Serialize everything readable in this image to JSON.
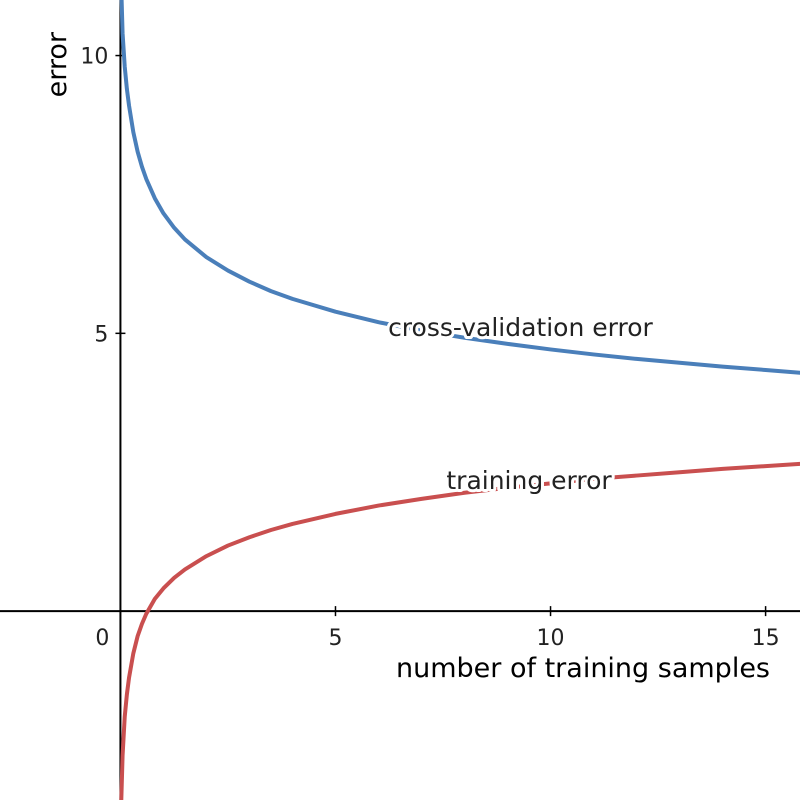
{
  "chart_data": {
    "type": "line",
    "xlabel": "number of training samples",
    "ylabel": "error",
    "xlim": [
      -2.8,
      15.8
    ],
    "ylim": [
      -3.4,
      11.0
    ],
    "x_ticks": [
      0,
      5,
      10,
      15
    ],
    "y_ticks": [
      5,
      10
    ],
    "origin_label": "0",
    "grid": false,
    "series": [
      {
        "name": "cross-validation error",
        "color": "#4a7fba",
        "x": [
          0.02,
          0.05,
          0.1,
          0.15,
          0.2,
          0.3,
          0.4,
          0.5,
          0.6,
          0.8,
          1.0,
          1.25,
          1.5,
          2,
          2.5,
          3,
          3.5,
          4,
          5,
          6,
          7,
          8,
          9,
          10,
          11,
          12,
          13,
          14,
          15,
          15.8
        ],
        "values": [
          11.2,
          10.4,
          9.8,
          9.4,
          9.1,
          8.62,
          8.27,
          8.0,
          7.78,
          7.43,
          7.16,
          6.9,
          6.69,
          6.37,
          6.13,
          5.93,
          5.76,
          5.62,
          5.39,
          5.2,
          5.05,
          4.92,
          4.81,
          4.71,
          4.62,
          4.54,
          4.47,
          4.4,
          4.34,
          4.29
        ]
      },
      {
        "name": "training error",
        "color": "#c94f4f",
        "x": [
          0.02,
          0.05,
          0.1,
          0.15,
          0.2,
          0.3,
          0.4,
          0.5,
          0.6,
          0.8,
          1.0,
          1.25,
          1.5,
          2,
          2.5,
          3,
          3.5,
          4,
          5,
          6,
          7,
          8,
          9,
          10,
          11,
          12,
          13,
          14,
          15,
          15.8
        ],
        "values": [
          -3.4,
          -2.6,
          -1.9,
          -1.5,
          -1.2,
          -0.76,
          -0.45,
          -0.23,
          -0.05,
          0.22,
          0.41,
          0.6,
          0.75,
          0.99,
          1.18,
          1.33,
          1.46,
          1.57,
          1.75,
          1.9,
          2.02,
          2.13,
          2.22,
          2.3,
          2.38,
          2.44,
          2.5,
          2.56,
          2.61,
          2.65
        ]
      }
    ],
    "annotations": [
      {
        "text": "cross-validation error",
        "x": 9.3,
        "y": 4.95
      },
      {
        "text": "training error",
        "x": 9.5,
        "y": 2.2
      }
    ]
  }
}
